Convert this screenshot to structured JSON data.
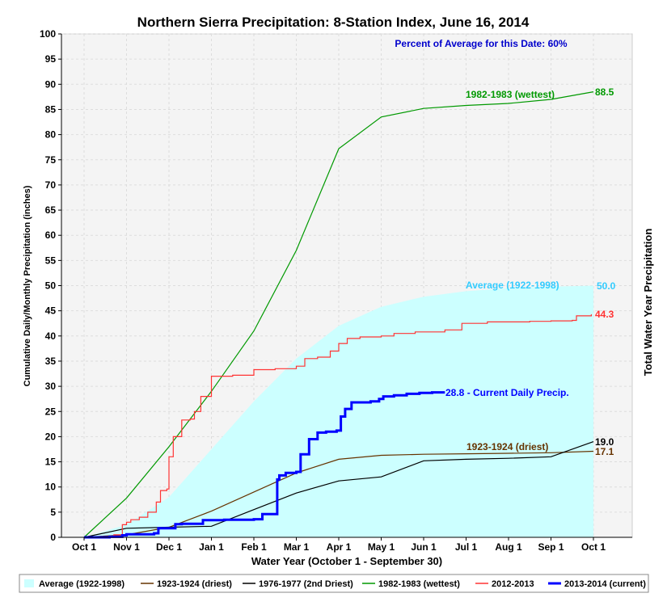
{
  "chart_data": {
    "type": "line",
    "title": "Northern Sierra Precipitation: 8-Station Index, June 16, 2014",
    "xlabel": "Water Year (October 1 - September 30)",
    "ylabel": "Cumulative Daily/Monthly Precipitation (inches)",
    "ylabel_right": "Total Water Year Precipitation",
    "percent_note": "Percent of Average for this Date: 60%",
    "ylim": [
      0,
      100
    ],
    "yticks": [
      "0",
      "5",
      "10",
      "15",
      "20",
      "25",
      "30",
      "35",
      "40",
      "45",
      "50",
      "55",
      "60",
      "65",
      "70",
      "75",
      "80",
      "85",
      "90",
      "95",
      "100"
    ],
    "xticks": [
      "Oct 1",
      "Nov 1",
      "Dec 1",
      "Jan 1",
      "Feb 1",
      "Mar 1",
      "Apr 1",
      "May 1",
      "Jun 1",
      "Jul 1",
      "Aug 1",
      "Sep 1",
      "Oct 1"
    ],
    "series": [
      {
        "name": "Average (1922-1998)",
        "color": "#ccffff",
        "kind": "area",
        "x": [
          0,
          1,
          2,
          3,
          4,
          5,
          6,
          7,
          8,
          9,
          10,
          11,
          12
        ],
        "values": [
          0,
          2.5,
          8.0,
          17.5,
          27.0,
          35.5,
          42.0,
          45.8,
          47.8,
          48.9,
          49.5,
          49.8,
          50.0
        ]
      },
      {
        "name": "1923-1924 (driest)",
        "color": "#663300",
        "kind": "line",
        "x": [
          0,
          1,
          2,
          3,
          4,
          5,
          6,
          7,
          8,
          9,
          10,
          11,
          12
        ],
        "values": [
          0,
          0.5,
          2.0,
          5.2,
          9.0,
          12.8,
          15.5,
          16.3,
          16.5,
          16.6,
          16.7,
          16.8,
          17.1
        ]
      },
      {
        "name": "1976-1977 (2nd Driest)",
        "color": "#000000",
        "kind": "line",
        "x": [
          0,
          1,
          2,
          3,
          4,
          5,
          6,
          7,
          8,
          9,
          10,
          11,
          12
        ],
        "values": [
          0,
          1.8,
          2.0,
          2.2,
          5.5,
          8.8,
          11.2,
          12.0,
          15.2,
          15.5,
          15.7,
          16.0,
          19.0
        ]
      },
      {
        "name": "1982-1983 (wettest)",
        "color": "#009900",
        "kind": "line",
        "x": [
          0,
          1,
          2,
          3,
          4,
          5,
          6,
          7,
          8,
          9,
          10,
          11,
          12
        ],
        "values": [
          0,
          7.8,
          18.0,
          29.0,
          41.0,
          57.0,
          77.2,
          83.5,
          85.2,
          85.8,
          86.2,
          87.0,
          88.5
        ]
      },
      {
        "name": "2012-2013",
        "color": "#ff3333",
        "kind": "line",
        "x": [
          0,
          0.7,
          0.9,
          1.0,
          1.1,
          1.3,
          1.5,
          1.7,
          1.8,
          1.95,
          2.0,
          2.1,
          2.3,
          2.5,
          2.6,
          2.75,
          3.0,
          3.5,
          4.0,
          4.5,
          5.0,
          5.2,
          5.5,
          5.8,
          6.0,
          6.2,
          6.5,
          7.0,
          7.3,
          7.8,
          8.5,
          8.9,
          9.5,
          10.5,
          11.0,
          11.5,
          11.6,
          11.95
        ],
        "values": [
          0,
          0.5,
          2.5,
          3.0,
          3.5,
          4.0,
          5.0,
          7.0,
          9.3,
          9.6,
          16.0,
          20.0,
          23.3,
          23.5,
          25.0,
          28.0,
          32.0,
          32.2,
          33.3,
          33.5,
          34.0,
          35.5,
          35.8,
          37.0,
          38.5,
          39.5,
          39.8,
          40.0,
          40.5,
          40.8,
          41.2,
          42.5,
          42.8,
          42.9,
          43.0,
          43.1,
          44.0,
          44.3
        ]
      },
      {
        "name": "2013-2014 (current)",
        "color": "#0000ff",
        "kind": "line",
        "x": [
          0,
          0.6,
          0.9,
          1.0,
          1.65,
          1.75,
          2.15,
          2.3,
          2.8,
          3.3,
          3.8,
          4.0,
          4.2,
          4.25,
          4.4,
          4.55,
          4.6,
          4.75,
          5.0,
          5.1,
          5.3,
          5.5,
          5.7,
          5.8,
          5.95,
          6.05,
          6.15,
          6.3,
          6.55,
          6.75,
          6.95,
          7.05,
          7.3,
          7.6,
          7.9,
          8.2,
          8.5
        ],
        "values": [
          0,
          0.1,
          0.4,
          0.6,
          0.8,
          1.8,
          2.6,
          2.7,
          3.4,
          3.5,
          3.5,
          3.6,
          4.6,
          4.6,
          4.6,
          11.5,
          12.3,
          12.8,
          13.0,
          16.5,
          19.5,
          20.8,
          21.0,
          21.0,
          21.2,
          24.0,
          25.5,
          26.8,
          26.8,
          27.0,
          27.5,
          28.0,
          28.2,
          28.5,
          28.7,
          28.8,
          28.8
        ]
      }
    ],
    "annotations": {
      "wettest_label": "1982-1983 (wettest)",
      "wettest_total": "88.5",
      "average_label": "Average (1922-1998)",
      "average_total": "50.0",
      "wy2013_total": "44.3",
      "current_label": "28.8 -  Current Daily Precip.",
      "driest_label": "1923-1924 (driest)",
      "second_driest_total": "19.0",
      "driest_total": "17.1"
    },
    "legend": [
      {
        "label": "Average (1922-1998)",
        "color": "#ccffff",
        "kind": "area"
      },
      {
        "label": "1923-1924 (driest)",
        "color": "#663300",
        "kind": "line"
      },
      {
        "label": "1976-1977 (2nd Driest)",
        "color": "#000000",
        "kind": "line"
      },
      {
        "label": "1982-1983 (wettest)",
        "color": "#009900",
        "kind": "line"
      },
      {
        "label": "2012-2013",
        "color": "#ff3333",
        "kind": "line"
      },
      {
        "label": "2013-2014 (current)",
        "color": "#0000ff",
        "kind": "line"
      }
    ]
  }
}
